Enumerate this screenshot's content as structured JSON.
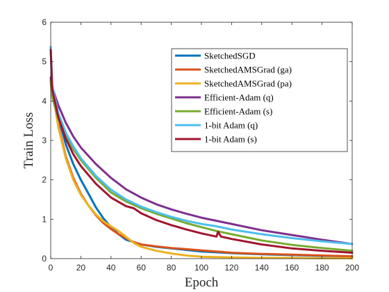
{
  "chart_data": {
    "type": "line",
    "title": "",
    "xlabel": "Epoch",
    "ylabel": "Train Loss",
    "xlim": [
      0,
      200
    ],
    "ylim": [
      0,
      6
    ],
    "xticks": [
      0,
      20,
      40,
      60,
      80,
      100,
      120,
      140,
      160,
      180,
      200
    ],
    "yticks": [
      0,
      1,
      2,
      3,
      4,
      5,
      6
    ],
    "grid": false,
    "legend_position": "top-right",
    "series": [
      {
        "name": "SketchedSGD",
        "color": "#0072BD",
        "x": [
          0,
          1,
          5,
          10,
          15,
          20,
          25,
          30,
          35,
          40,
          45,
          50,
          60,
          70,
          80,
          90,
          100,
          110,
          120,
          140,
          160,
          180,
          200
        ],
        "y": [
          4.55,
          4.3,
          3.6,
          2.9,
          2.4,
          2.0,
          1.65,
          1.3,
          1.02,
          0.8,
          0.62,
          0.48,
          0.36,
          0.3,
          0.26,
          0.22,
          0.18,
          0.16,
          0.14,
          0.11,
          0.09,
          0.07,
          0.06
        ]
      },
      {
        "name": "SketchedAMSGrad (ga)",
        "color": "#D95319",
        "x": [
          0,
          1,
          5,
          10,
          15,
          20,
          25,
          30,
          35,
          40,
          45,
          50,
          55,
          60,
          70,
          80,
          90,
          100,
          110,
          120,
          140,
          160,
          180,
          200
        ],
        "y": [
          4.55,
          4.35,
          3.4,
          2.6,
          2.05,
          1.65,
          1.35,
          1.1,
          0.9,
          0.75,
          0.62,
          0.52,
          0.42,
          0.36,
          0.31,
          0.27,
          0.24,
          0.21,
          0.18,
          0.15,
          0.12,
          0.1,
          0.08,
          0.06
        ]
      },
      {
        "name": "SketchedAMSGrad (pa)",
        "color": "#EDB120",
        "x": [
          0,
          1,
          5,
          10,
          15,
          20,
          25,
          30,
          35,
          40,
          45,
          50,
          55,
          60,
          70,
          80,
          90,
          100,
          110,
          120,
          140,
          160,
          180,
          200
        ],
        "y": [
          4.55,
          4.3,
          3.35,
          2.55,
          2.0,
          1.62,
          1.35,
          1.12,
          0.95,
          0.82,
          0.7,
          0.55,
          0.4,
          0.3,
          0.2,
          0.13,
          0.08,
          0.05,
          0.04,
          0.03,
          0.02,
          0.02,
          0.01,
          0.01
        ]
      },
      {
        "name": "Efficient-Adam (q)",
        "color": "#7E2F8E",
        "x": [
          0,
          1,
          5,
          10,
          15,
          20,
          30,
          40,
          50,
          60,
          70,
          80,
          90,
          100,
          110,
          120,
          140,
          160,
          180,
          200
        ],
        "y": [
          4.6,
          4.35,
          3.9,
          3.45,
          3.1,
          2.82,
          2.4,
          2.05,
          1.76,
          1.55,
          1.38,
          1.25,
          1.14,
          1.04,
          0.96,
          0.88,
          0.72,
          0.6,
          0.48,
          0.37
        ]
      },
      {
        "name": "Efficient-Adam (s)",
        "color": "#77AC30",
        "x": [
          0,
          1,
          5,
          10,
          15,
          20,
          30,
          40,
          50,
          60,
          70,
          80,
          90,
          100,
          110,
          120,
          140,
          160,
          180,
          200
        ],
        "y": [
          4.5,
          4.1,
          3.55,
          3.1,
          2.78,
          2.5,
          2.05,
          1.68,
          1.45,
          1.28,
          1.14,
          1.02,
          0.9,
          0.8,
          0.7,
          0.62,
          0.46,
          0.35,
          0.27,
          0.2
        ]
      },
      {
        "name": "1-bit Adam (q)",
        "color": "#4DBEEE",
        "x": [
          0,
          1,
          5,
          10,
          15,
          20,
          30,
          40,
          50,
          60,
          70,
          80,
          90,
          100,
          110,
          120,
          140,
          160,
          180,
          200
        ],
        "y": [
          5.38,
          4.4,
          3.7,
          3.2,
          2.85,
          2.55,
          2.1,
          1.75,
          1.5,
          1.32,
          1.18,
          1.06,
          0.96,
          0.88,
          0.82,
          0.74,
          0.62,
          0.52,
          0.44,
          0.37
        ]
      },
      {
        "name": "1-bit Adam (s)",
        "color": "#A2142F",
        "x": [
          0,
          1,
          5,
          10,
          15,
          20,
          30,
          40,
          50,
          55,
          60,
          70,
          80,
          90,
          100,
          110,
          111,
          113,
          120,
          140,
          160,
          180,
          200
        ],
        "y": [
          5.3,
          4.3,
          3.6,
          3.05,
          2.65,
          2.35,
          1.9,
          1.55,
          1.33,
          1.28,
          1.15,
          0.98,
          0.85,
          0.74,
          0.64,
          0.56,
          0.68,
          0.56,
          0.5,
          0.36,
          0.26,
          0.2,
          0.15
        ]
      }
    ]
  }
}
